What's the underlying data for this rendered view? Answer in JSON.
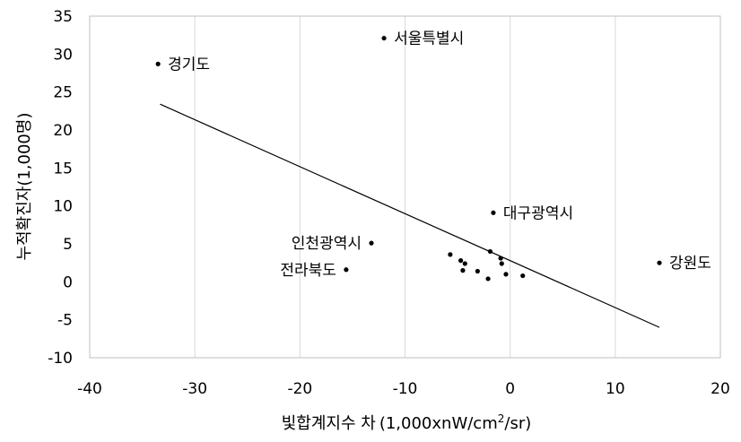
{
  "chart_data": {
    "type": "scatter",
    "title": "",
    "xlabel_main": "빛합계지수 차",
    "xlabel_unit_pre": "(1,000xnW/cm",
    "xlabel_sup": "2",
    "xlabel_unit_post": "/sr)",
    "ylabel": "누적확진자(1,000명)",
    "xlim": [
      -40,
      20
    ],
    "ylim": [
      -10,
      35
    ],
    "xticks": [
      "-40",
      "-30",
      "-20",
      "-10",
      "0",
      "10",
      "20"
    ],
    "yticks": [
      "-10",
      "-5",
      "0",
      "5",
      "10",
      "15",
      "20",
      "25",
      "30",
      "35"
    ],
    "grid": "vertical",
    "points": [
      {
        "x": -33.5,
        "y": 28.7,
        "label": "경기도",
        "anchor": "right"
      },
      {
        "x": -12.0,
        "y": 32.1,
        "label": "서울특별시",
        "anchor": "right"
      },
      {
        "x": -1.6,
        "y": 9.1,
        "label": "대구광역시",
        "anchor": "right"
      },
      {
        "x": -13.2,
        "y": 5.1,
        "label": "인천광역시",
        "anchor": "left"
      },
      {
        "x": -15.6,
        "y": 1.6,
        "label": "전라북도",
        "anchor": "left"
      },
      {
        "x": 14.2,
        "y": 2.5,
        "label": "강원도",
        "anchor": "right"
      },
      {
        "x": -5.7,
        "y": 3.6,
        "label": ""
      },
      {
        "x": -4.7,
        "y": 2.8,
        "label": ""
      },
      {
        "x": -4.3,
        "y": 2.4,
        "label": ""
      },
      {
        "x": -4.5,
        "y": 1.5,
        "label": ""
      },
      {
        "x": -3.1,
        "y": 1.4,
        "label": ""
      },
      {
        "x": -2.1,
        "y": 0.4,
        "label": ""
      },
      {
        "x": -1.9,
        "y": 4.0,
        "label": ""
      },
      {
        "x": -0.9,
        "y": 3.1,
        "label": ""
      },
      {
        "x": -0.8,
        "y": 2.4,
        "label": ""
      },
      {
        "x": -0.4,
        "y": 1.0,
        "label": ""
      },
      {
        "x": 1.2,
        "y": 0.8,
        "label": ""
      }
    ],
    "trendline": {
      "x": [
        -33.3,
        14.2
      ],
      "y": [
        23.4,
        -6.0
      ]
    }
  }
}
